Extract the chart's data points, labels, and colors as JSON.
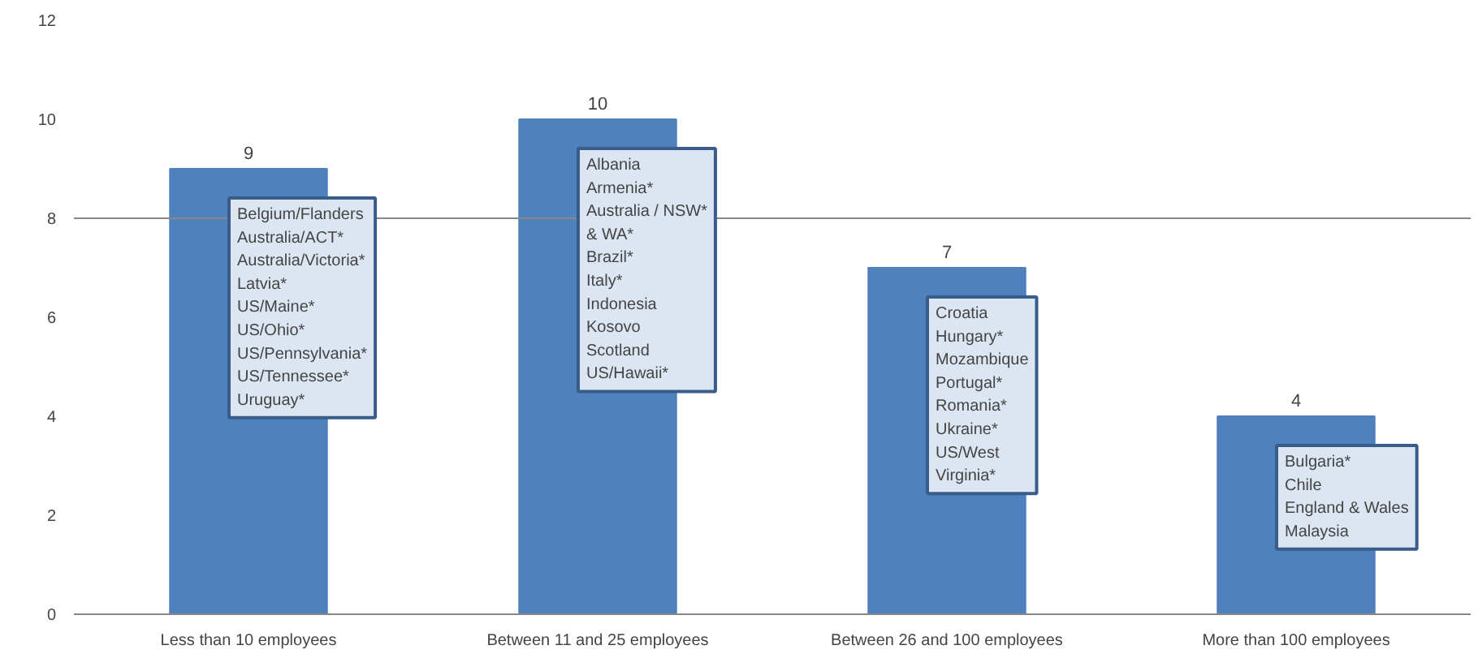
{
  "chart_data": {
    "type": "bar",
    "categories": [
      "Less than 10 employees",
      "Between 11 and 25 employees",
      "Between 26 and 100 employees",
      "More than 100 employees"
    ],
    "values": [
      9,
      10,
      7,
      4
    ],
    "color": "#4f81bd",
    "data_labels": true,
    "ylim": [
      0,
      12
    ],
    "yticks": [
      0,
      2,
      4,
      6,
      8,
      10,
      12
    ],
    "grid": false,
    "ref_lines": [
      {
        "axis": "y",
        "value": 8,
        "label": null,
        "color": "#878787"
      }
    ],
    "annotations": [
      "Belgium/Flanders\nAustralia/ACT*\nAustralia/Victoria*\nLatvia*\nUS/Maine*\nUS/Ohio*\nUS/Pennsylvania*\nUS/Tennessee*\nUruguay*",
      "Albania\nArmenia*\nAustralia / NSW*\n& WA*\nBrazil*\nItaly*\nIndonesia\nKosovo\nScotland\nUS/Hawaii*",
      "Croatia\nHungary*\nMozambique\nPortugal*\nRomania*\nUkraine*\nUS/West\nVirginia*",
      "Bulgaria*\nChile\nEngland & Wales\nMalaysia"
    ]
  }
}
